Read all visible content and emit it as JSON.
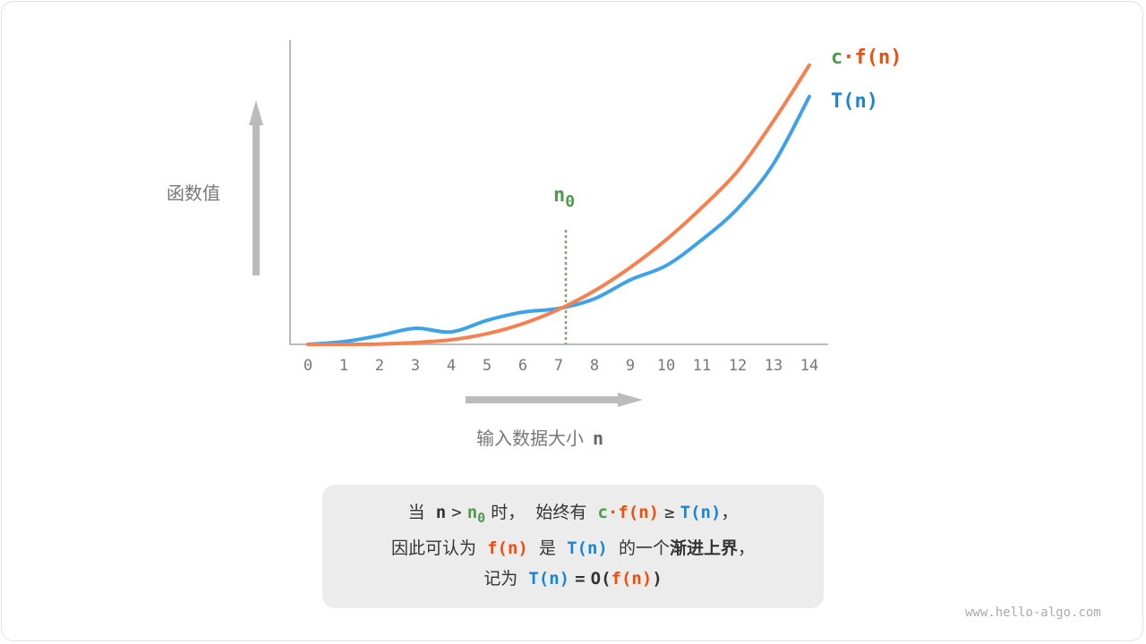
{
  "chart_data": {
    "type": "line",
    "x": [
      0,
      1,
      2,
      3,
      4,
      5,
      6,
      7,
      8,
      9,
      10,
      11,
      12,
      13,
      14
    ],
    "xticks": [
      "0",
      "1",
      "2",
      "3",
      "4",
      "5",
      "6",
      "7",
      "8",
      "9",
      "10",
      "11",
      "12",
      "13",
      "14"
    ],
    "xlabel": "输入数据大小",
    "xlabel_var": "n",
    "ylabel": "函数值",
    "xlim": [
      -0.5,
      14.5
    ],
    "ylim": [
      0,
      100
    ],
    "grid": false,
    "series": [
      {
        "name": "c·f(n)",
        "name_parts": [
          "c",
          "·f(n)"
        ],
        "color": "#f6814e",
        "values": [
          0,
          0,
          0.1,
          0.6,
          1.5,
          3.5,
          6.8,
          11.5,
          17.6,
          25.3,
          34.4,
          45,
          57,
          73.5,
          91.8
        ]
      },
      {
        "name": "T(n)",
        "color": "#3ea2e8",
        "values": [
          0,
          0.9,
          2.9,
          5.3,
          4.1,
          7.9,
          10.6,
          11.8,
          15,
          21.2,
          25.9,
          34.4,
          44.7,
          59.4,
          81.5
        ]
      }
    ],
    "annotation": {
      "label": "n",
      "sub": "0",
      "x": 7.2,
      "color": "#7aa86f"
    }
  },
  "caption": {
    "l1": [
      "当",
      "n",
      ">",
      "n",
      "0",
      "时，",
      "始终有",
      "c",
      "·f(n)",
      "≥",
      "T(n)",
      "，"
    ],
    "l2": [
      "因此可认为",
      "f(n)",
      "是",
      "T(n)",
      "的一个",
      "渐进上界",
      "，"
    ],
    "l3": [
      "记为",
      "T(n)",
      "=",
      "O(",
      "f(n)",
      ")"
    ]
  },
  "watermark": "www.hello-algo.com"
}
